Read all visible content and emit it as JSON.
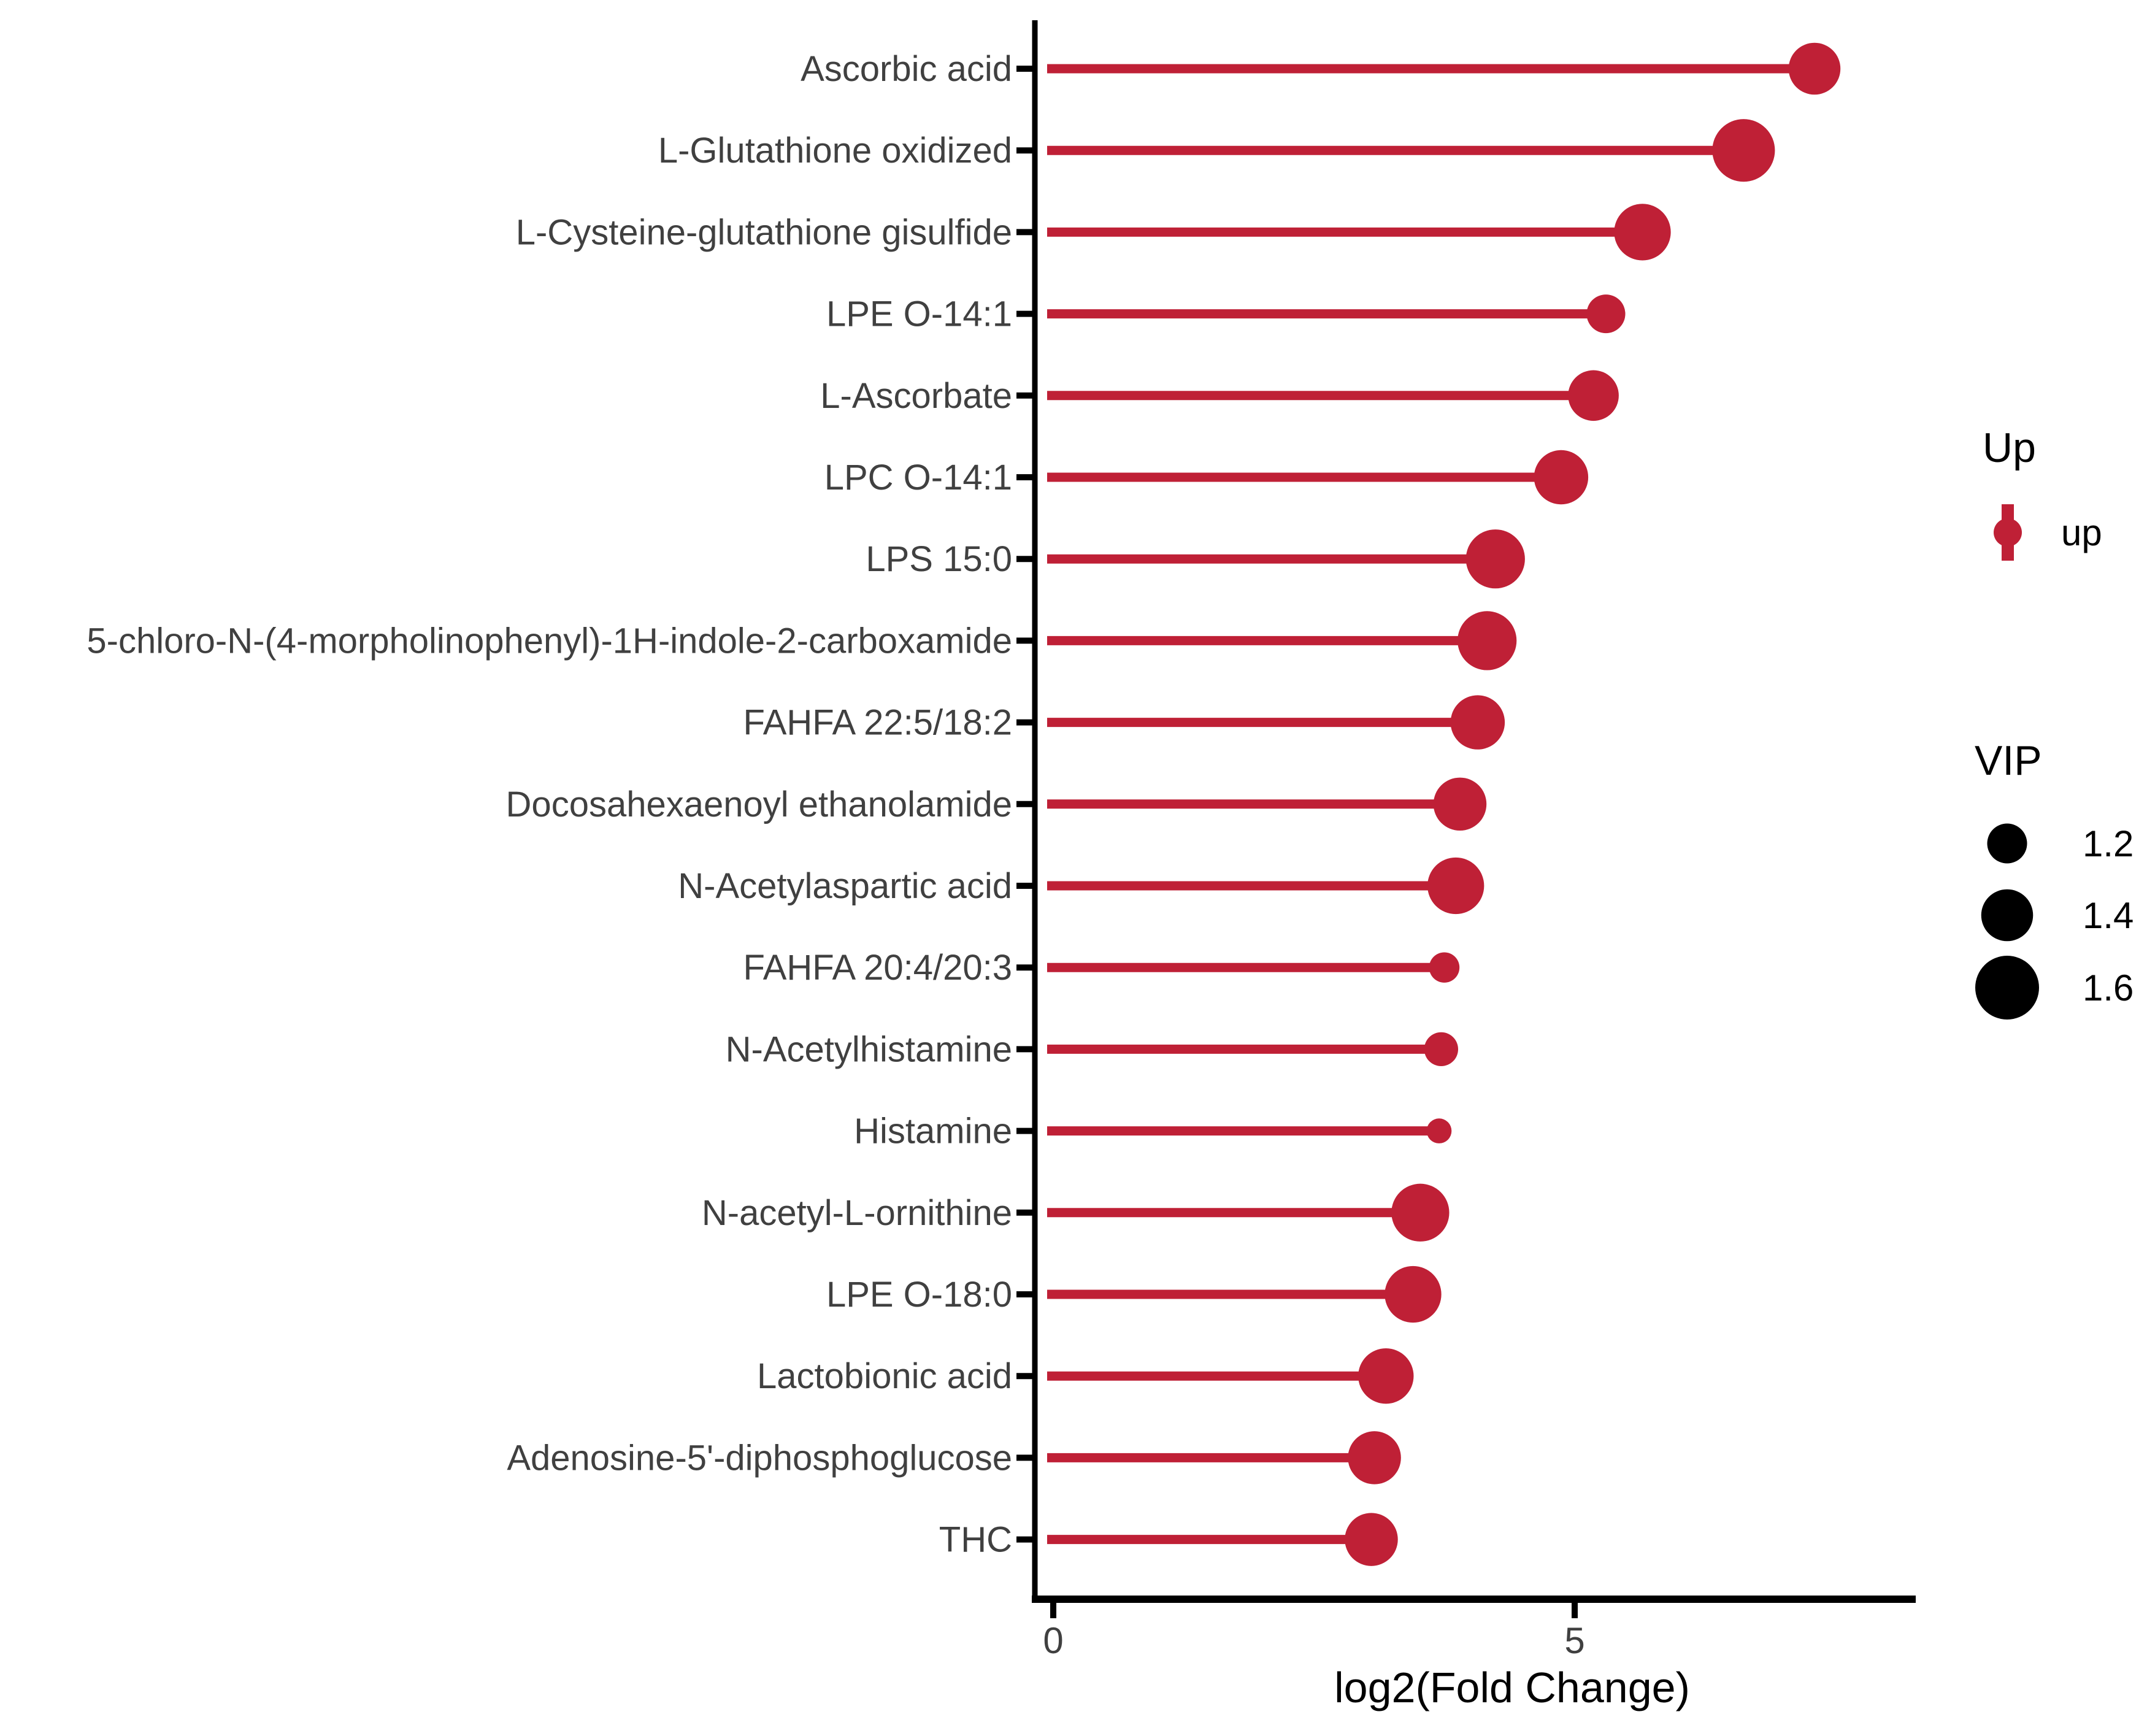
{
  "figure": {
    "background": "#ffffff",
    "accent_red": "#BF2036",
    "legend_circle_color": "#000000",
    "axis_text_color": "#404040"
  },
  "chart_data": {
    "type": "scatter",
    "style": "horizontal-lollipop",
    "title": "",
    "xlabel": "log2(Fold Change)",
    "ylabel": "",
    "xlim": [
      -0.2,
      8.3
    ],
    "xticks": [
      "0",
      "5"
    ],
    "xtick_values": [
      0,
      5
    ],
    "grid": false,
    "legend_position": "right",
    "point_color": "#BF2036",
    "rows": [
      {
        "label": "Ascorbic acid",
        "log2fc": 7.3,
        "vip": 1.4
      },
      {
        "label": "L-Glutathione oxidized",
        "log2fc": 6.62,
        "vip": 1.58
      },
      {
        "label": "L-Cysteine-glutathione gisulfide",
        "log2fc": 5.65,
        "vip": 1.48
      },
      {
        "label": "LPE O-14:1",
        "log2fc": 5.3,
        "vip": 1.18
      },
      {
        "label": "L-Ascorbate",
        "log2fc": 5.18,
        "vip": 1.38
      },
      {
        "label": "LPC O-14:1",
        "log2fc": 4.87,
        "vip": 1.44
      },
      {
        "label": "LPS 15:0",
        "log2fc": 4.24,
        "vip": 1.52
      },
      {
        "label": "5-chloro-N-(4-morpholinophenyl)-1H-indole-2-carboxamide",
        "log2fc": 4.16,
        "vip": 1.52
      },
      {
        "label": "FAHFA 22:5/18:2",
        "log2fc": 4.07,
        "vip": 1.44
      },
      {
        "label": "Docosahexaenoyl ethanolamide",
        "log2fc": 3.9,
        "vip": 1.42
      },
      {
        "label": "N-Acetylaspartic acid",
        "log2fc": 3.86,
        "vip": 1.48
      },
      {
        "label": "FAHFA 20:4/20:3",
        "log2fc": 3.75,
        "vip": 1.04
      },
      {
        "label": "N-Acetylhistamine",
        "log2fc": 3.72,
        "vip": 1.1
      },
      {
        "label": "Histamine",
        "log2fc": 3.7,
        "vip": 0.95
      },
      {
        "label": "N-acetyl-L-ornithine",
        "log2fc": 3.52,
        "vip": 1.5
      },
      {
        "label": "LPE O-18:0",
        "log2fc": 3.45,
        "vip": 1.48
      },
      {
        "label": "Lactobionic acid",
        "log2fc": 3.19,
        "vip": 1.46
      },
      {
        "label": "Adenosine-5'-diphosphoglucose",
        "log2fc": 3.08,
        "vip": 1.42
      },
      {
        "label": "THC",
        "log2fc": 3.05,
        "vip": 1.42
      }
    ]
  },
  "legend_up": {
    "title": "Up",
    "items": [
      {
        "label": "up",
        "color": "#BF2036"
      }
    ]
  },
  "legend_vip": {
    "title": "VIP",
    "items": [
      {
        "label": "1.2",
        "vip": 1.2
      },
      {
        "label": "1.4",
        "vip": 1.4
      },
      {
        "label": "1.6",
        "vip": 1.6
      }
    ]
  }
}
